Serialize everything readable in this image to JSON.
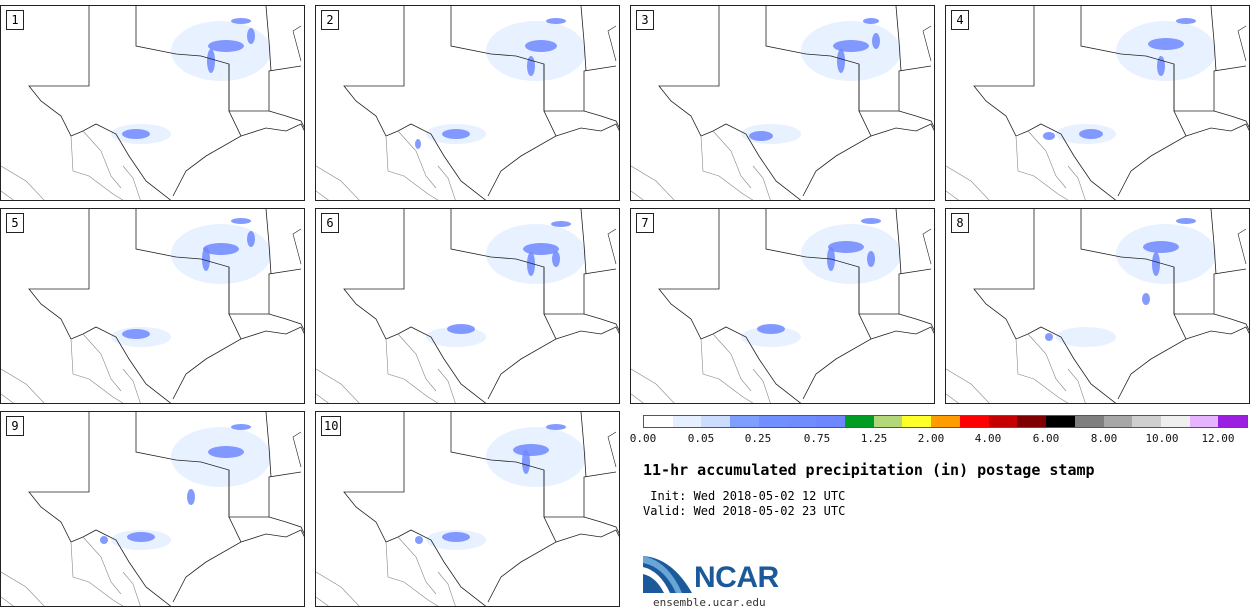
{
  "panels": [
    {
      "label": "1"
    },
    {
      "label": "2"
    },
    {
      "label": "3"
    },
    {
      "label": "4"
    },
    {
      "label": "5"
    },
    {
      "label": "6"
    },
    {
      "label": "7"
    },
    {
      "label": "8"
    },
    {
      "label": "9"
    },
    {
      "label": "10"
    }
  ],
  "colorbar": {
    "colors": [
      "#ffffff",
      "#e6efff",
      "#ccdcff",
      "#7f9fff",
      "#7090ff",
      "#6f8dff",
      "#6d88ff",
      "#009c24",
      "#b4d77a",
      "#ffff2a",
      "#ff9d00",
      "#ff0000",
      "#c40000",
      "#7f0000",
      "#000000",
      "#7f7f7f",
      "#a7a7a7",
      "#cfcfcf",
      "#efefef",
      "#e6b3ff",
      "#9a1fe0"
    ],
    "ticks": [
      "0.00",
      "0.05",
      "0.25",
      "0.75",
      "1.25",
      "2.00",
      "4.00",
      "6.00",
      "8.00",
      "10.00",
      "12.00"
    ]
  },
  "title": "11-hr accumulated precipitation (in) postage stamp",
  "init": " Init: Wed 2018-05-02 12 UTC",
  "valid": "Valid: Wed 2018-05-02 23 UTC",
  "logo": {
    "word": "NCAR",
    "url": "ensemble.ucar.edu",
    "color": "#1b5a9a"
  }
}
